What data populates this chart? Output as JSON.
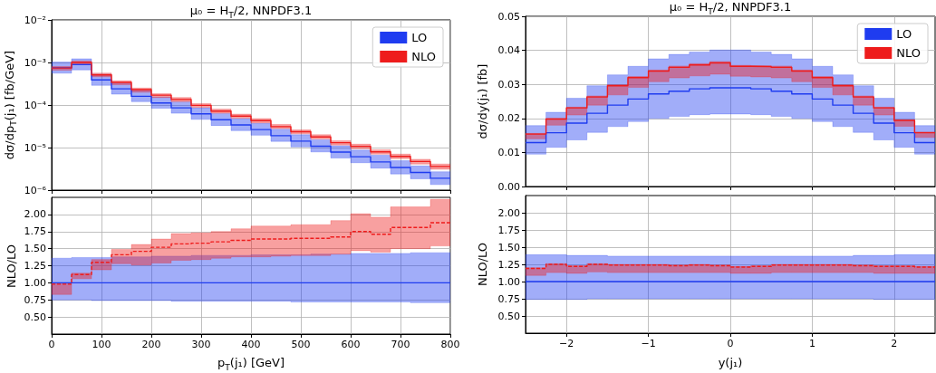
{
  "chart_data": [
    {
      "type": "step",
      "title": "μ₀ = H$_{T}$/2, NNPDF3.1",
      "ylabel": "dσ/dp$_{T}$(j₁) [fb/GeV]",
      "log": true,
      "grid": true,
      "legend": "top right",
      "tick_labels": "y",
      "x": [
        0,
        40,
        80,
        120,
        160,
        200,
        240,
        280,
        320,
        360,
        400,
        440,
        480,
        520,
        560,
        600,
        640,
        680,
        720,
        760,
        800
      ],
      "xlim": [
        0,
        800
      ],
      "xticks": [
        0,
        100,
        200,
        300,
        400,
        500,
        600,
        700,
        800
      ],
      "ylim": [
        1e-06,
        0.01
      ],
      "yticks": [
        {
          "value": 1e-06,
          "label": "10⁻⁶"
        },
        {
          "value": 1e-05,
          "label": "10⁻⁵"
        },
        {
          "value": 0.0001,
          "label": "10⁻⁴"
        },
        {
          "value": 0.001,
          "label": "10⁻³"
        },
        {
          "value": 0.01,
          "label": "10⁻²"
        }
      ],
      "series": [
        {
          "name": "LO",
          "color": "#1f3cf0",
          "line_style": "solid",
          "values": [
            0.00075,
            0.00089,
            0.00039,
            0.00024,
            0.00016,
            0.000112,
            8.6e-05,
            6.2e-05,
            4.5e-05,
            3.4e-05,
            2.65e-05,
            1.9e-05,
            1.42e-05,
            1.08e-05,
            7.8e-06,
            6.1e-06,
            4.6e-06,
            3.4e-06,
            2.6e-06,
            1.9e-06,
            1.9e-06
          ],
          "lower": [
            0.00056,
            0.00067,
            0.00029,
            0.00018,
            0.00012,
            8.4e-05,
            6.4e-05,
            4.6e-05,
            3.3e-05,
            2.5e-05,
            1.95e-05,
            1.4e-05,
            1.04e-05,
            7.9e-06,
            5.7e-06,
            4.4e-06,
            3.3e-06,
            2.4e-06,
            1.85e-06,
            1.35e-06,
            1.35e-06
          ],
          "upper": [
            0.00102,
            0.00122,
            0.00053,
            0.00033,
            0.00022,
            0.000154,
            0.000119,
            8.6e-05,
            6.3e-05,
            4.8e-05,
            3.7e-05,
            2.7e-05,
            2e-05,
            1.52e-05,
            1.1e-05,
            8.7e-06,
            6.6e-06,
            4.9e-06,
            3.7e-06,
            2.7e-06,
            2.7e-06
          ]
        },
        {
          "name": "NLO",
          "color": "#ee1c1c",
          "line_style": "solid",
          "values": [
            0.00074,
            0.001,
            0.00051,
            0.00034,
            0.00023,
            0.00017,
            0.000135,
            9.8e-05,
            7.2e-05,
            5.5e-05,
            4.3e-05,
            3.1e-05,
            2.35e-05,
            1.78e-05,
            1.3e-05,
            1.07e-05,
            7.9e-06,
            6.2e-06,
            4.7e-06,
            3.6e-06,
            3.6e-06
          ],
          "lower": [
            0.00066,
            0.00092,
            0.00046,
            0.0003,
            0.0002,
            0.00015,
            0.00012,
            8.8e-05,
            6.4e-05,
            4.9e-05,
            3.8e-05,
            2.8e-05,
            2.1e-05,
            1.6e-05,
            1.15e-05,
            9.4e-06,
            7e-06,
            5.5e-06,
            4.1e-06,
            3.1e-06,
            3.1e-06
          ],
          "upper": [
            0.0008,
            0.00108,
            0.00056,
            0.00037,
            0.00025,
            0.000185,
            0.00015,
            0.000108,
            8e-05,
            6.1e-05,
            4.8e-05,
            3.5e-05,
            2.6e-05,
            2e-05,
            1.45e-05,
            1.2e-05,
            8.9e-06,
            7e-06,
            5.3e-06,
            4.1e-06,
            4.1e-06
          ]
        }
      ]
    },
    {
      "type": "step",
      "xlabel": "p$_{T}$(j₁) [GeV]",
      "ylabel": "NLO/LO",
      "grid": true,
      "x": [
        0,
        40,
        80,
        120,
        160,
        200,
        240,
        280,
        320,
        360,
        400,
        440,
        480,
        520,
        560,
        600,
        640,
        680,
        720,
        760,
        800
      ],
      "xlim": [
        0,
        800
      ],
      "xticks": [
        0,
        100,
        200,
        300,
        400,
        500,
        600,
        700,
        800
      ],
      "ylim": [
        0.25,
        2.25
      ],
      "yticks": [
        {
          "value": 0.5,
          "label": "0.50"
        },
        {
          "value": 0.75,
          "label": "0.75"
        },
        {
          "value": 1,
          "label": "1.00"
        },
        {
          "value": 1.25,
          "label": "1.25"
        },
        {
          "value": 1.5,
          "label": "1.50"
        },
        {
          "value": 1.75,
          "label": "1.75"
        },
        {
          "value": 2,
          "label": "2.00"
        }
      ],
      "series": [
        {
          "color": "#1f3cf0",
          "line_style": "solid",
          "values": [
            1,
            1,
            1,
            1,
            1,
            1,
            1,
            1,
            1,
            1,
            1,
            1,
            1,
            1,
            1,
            1,
            1,
            1,
            1,
            1,
            1
          ],
          "lower": [
            0.75,
            0.75,
            0.74,
            0.74,
            0.74,
            0.74,
            0.73,
            0.73,
            0.73,
            0.73,
            0.73,
            0.73,
            0.72,
            0.72,
            0.72,
            0.72,
            0.72,
            0.72,
            0.71,
            0.71,
            0.71
          ],
          "upper": [
            1.36,
            1.37,
            1.37,
            1.38,
            1.38,
            1.39,
            1.39,
            1.4,
            1.4,
            1.4,
            1.41,
            1.41,
            1.41,
            1.42,
            1.42,
            1.43,
            1.43,
            1.43,
            1.44,
            1.44,
            1.44
          ]
        },
        {
          "color": "#ee1c1c",
          "line_style": "dashed",
          "values": [
            0.98,
            1.12,
            1.3,
            1.41,
            1.46,
            1.52,
            1.57,
            1.58,
            1.6,
            1.62,
            1.64,
            1.64,
            1.65,
            1.65,
            1.67,
            1.75,
            1.71,
            1.81,
            1.81,
            1.88,
            1.88
          ],
          "lower": [
            0.83,
            1.06,
            1.19,
            1.28,
            1.26,
            1.29,
            1.33,
            1.34,
            1.36,
            1.38,
            1.38,
            1.39,
            1.4,
            1.4,
            1.42,
            1.47,
            1.45,
            1.5,
            1.5,
            1.54,
            1.54
          ],
          "upper": [
            1,
            1.14,
            1.34,
            1.49,
            1.56,
            1.64,
            1.72,
            1.73,
            1.75,
            1.79,
            1.83,
            1.83,
            1.85,
            1.85,
            1.91,
            2.01,
            1.96,
            2.11,
            2.11,
            2.22,
            2.22
          ]
        }
      ]
    },
    {
      "type": "step",
      "title": "μ₀ = H$_{T}$/2, NNPDF3.1",
      "ylabel": "dσ/dy(j₁) [fb]",
      "grid": true,
      "legend": "top right",
      "tick_labels": "y",
      "x": [
        -2.5,
        -2.25,
        -2,
        -1.75,
        -1.5,
        -1.25,
        -1,
        -0.75,
        -0.5,
        -0.25,
        0,
        0.25,
        0.5,
        0.75,
        1,
        1.25,
        1.5,
        1.75,
        2,
        2.25,
        2.5
      ],
      "xlim": [
        -2.5,
        2.5
      ],
      "xticks": [
        -2,
        -1,
        0,
        1,
        2
      ],
      "ylim": [
        0,
        0.05
      ],
      "yticks": [
        {
          "value": 0,
          "label": "0.00"
        },
        0.01,
        0.02,
        0.03,
        0.04,
        0.05
      ],
      "series": [
        {
          "name": "LO",
          "color": "#1f3cf0",
          "line_style": "solid",
          "values": [
            0.0129,
            0.0158,
            0.0186,
            0.0215,
            0.0239,
            0.0257,
            0.0272,
            0.028,
            0.0287,
            0.029,
            0.029,
            0.0287,
            0.028,
            0.0272,
            0.0257,
            0.0239,
            0.0215,
            0.0186,
            0.0158,
            0.0129,
            0.0129
          ],
          "lower": [
            0.0095,
            0.0115,
            0.0137,
            0.0159,
            0.0176,
            0.0191,
            0.02,
            0.0206,
            0.0211,
            0.0213,
            0.0213,
            0.0211,
            0.0206,
            0.02,
            0.0191,
            0.0176,
            0.0159,
            0.0137,
            0.0115,
            0.0095,
            0.0095
          ],
          "upper": [
            0.0179,
            0.0218,
            0.0259,
            0.0296,
            0.0328,
            0.0353,
            0.0375,
            0.0388,
            0.0395,
            0.0401,
            0.0401,
            0.0395,
            0.0388,
            0.0375,
            0.0353,
            0.0328,
            0.0296,
            0.0259,
            0.0218,
            0.0179,
            0.0179
          ]
        },
        {
          "name": "NLO",
          "color": "#ee1c1c",
          "line_style": "solid",
          "values": [
            0.0154,
            0.0198,
            0.0231,
            0.0263,
            0.0296,
            0.032,
            0.0339,
            0.035,
            0.0357,
            0.0363,
            0.0353,
            0.0352,
            0.035,
            0.0339,
            0.032,
            0.0296,
            0.0263,
            0.0231,
            0.0194,
            0.0158,
            0.0158
          ],
          "lower": [
            0.014,
            0.018,
            0.021,
            0.0239,
            0.0269,
            0.0291,
            0.0308,
            0.0319,
            0.0325,
            0.033,
            0.0324,
            0.0322,
            0.0319,
            0.0308,
            0.0291,
            0.0269,
            0.0239,
            0.021,
            0.0177,
            0.0144,
            0.0144
          ],
          "upper": [
            0.0156,
            0.02,
            0.0233,
            0.0266,
            0.0299,
            0.0323,
            0.0342,
            0.0354,
            0.0361,
            0.0367,
            0.0356,
            0.0355,
            0.0354,
            0.0342,
            0.0323,
            0.0299,
            0.0266,
            0.0233,
            0.0196,
            0.016,
            0.016
          ]
        }
      ]
    },
    {
      "type": "step",
      "xlabel": "y(j₁)",
      "ylabel": "NLO/LO",
      "grid": true,
      "x": [
        -2.5,
        -2.25,
        -2,
        -1.75,
        -1.5,
        -1.25,
        -1,
        -0.75,
        -0.5,
        -0.25,
        0,
        0.25,
        0.5,
        0.75,
        1,
        1.25,
        1.5,
        1.75,
        2,
        2.25,
        2.5
      ],
      "xlim": [
        -2.5,
        2.5
      ],
      "xticks": [
        {
          "value": -2,
          "label": "−2"
        },
        {
          "value": -1,
          "label": "−1"
        },
        0,
        1,
        2
      ],
      "ylim": [
        0.25,
        2.25
      ],
      "yticks": [
        {
          "value": 0.5,
          "label": "0.50"
        },
        {
          "value": 0.75,
          "label": "0.75"
        },
        {
          "value": 1,
          "label": "1.00"
        },
        {
          "value": 1.25,
          "label": "1.25"
        },
        {
          "value": 1.5,
          "label": "1.50"
        },
        {
          "value": 1.75,
          "label": "1.75"
        },
        {
          "value": 2,
          "label": "2.00"
        }
      ],
      "series": [
        {
          "color": "#1f3cf0",
          "line_style": "solid",
          "values": [
            1,
            1,
            1,
            1,
            1,
            1,
            1,
            1,
            1,
            1,
            1,
            1,
            1,
            1,
            1,
            1,
            1,
            1,
            1,
            1,
            1
          ],
          "lower": [
            0.74,
            0.74,
            0.74,
            0.75,
            0.75,
            0.75,
            0.75,
            0.75,
            0.75,
            0.75,
            0.75,
            0.75,
            0.75,
            0.75,
            0.75,
            0.75,
            0.75,
            0.74,
            0.74,
            0.74,
            0.74
          ],
          "upper": [
            1.39,
            1.39,
            1.38,
            1.38,
            1.37,
            1.37,
            1.37,
            1.37,
            1.37,
            1.37,
            1.37,
            1.37,
            1.37,
            1.37,
            1.37,
            1.37,
            1.38,
            1.38,
            1.39,
            1.39,
            1.39
          ]
        },
        {
          "color": "#ee1c1c",
          "line_style": "dashed",
          "values": [
            1.19,
            1.25,
            1.22,
            1.25,
            1.24,
            1.24,
            1.24,
            1.23,
            1.24,
            1.23,
            1.21,
            1.22,
            1.24,
            1.24,
            1.24,
            1.24,
            1.23,
            1.22,
            1.22,
            1.21,
            1.21
          ],
          "lower": [
            1.09,
            1.13,
            1.12,
            1.14,
            1.13,
            1.13,
            1.13,
            1.13,
            1.13,
            1.13,
            1.12,
            1.12,
            1.13,
            1.13,
            1.13,
            1.13,
            1.13,
            1.12,
            1.12,
            1.12,
            1.12
          ],
          "upper": [
            1.2,
            1.26,
            1.23,
            1.26,
            1.25,
            1.25,
            1.25,
            1.24,
            1.25,
            1.24,
            1.22,
            1.23,
            1.25,
            1.25,
            1.25,
            1.25,
            1.24,
            1.23,
            1.23,
            1.22,
            1.22
          ]
        }
      ]
    }
  ]
}
